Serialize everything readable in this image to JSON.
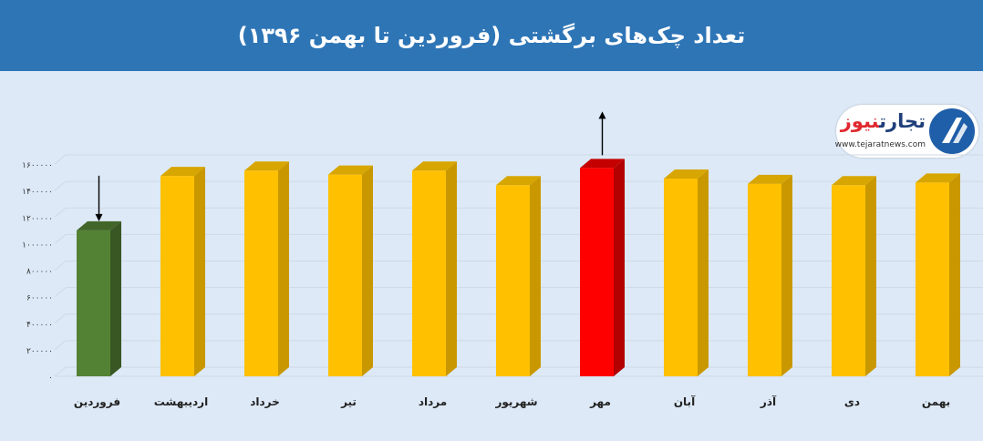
{
  "header": {
    "title": "تعداد چک‌های برگشتی (فروردین تا بهمن ۱۳۹۶)"
  },
  "logo": {
    "brand_part1": "تجارت",
    "brand_part2": "نیوز",
    "site": "www.tejaratnews.com"
  },
  "chart_data": {
    "type": "bar",
    "categories": [
      "فروردین",
      "اردیبهشت",
      "خرداد",
      "تیر",
      "مرداد",
      "شهریور",
      "مهر",
      "آبان",
      "آذر",
      "دی",
      "بهمن"
    ],
    "values": [
      1100000,
      1510000,
      1550000,
      1520000,
      1550000,
      1440000,
      1570000,
      1490000,
      1450000,
      1440000,
      1460000
    ],
    "y_ticks": [
      "0",
      "200000",
      "400000",
      "600000",
      "800000",
      "1000000",
      "1200000",
      "1400000",
      "1600000"
    ],
    "y_tick_labels_visible": [
      "۰",
      "۲۰۰۰۰۰",
      "۴۰۰۰۰۰",
      "۶۰۰۰۰۰",
      "۸۰۰۰۰۰",
      "۱۰۰۰۰۰۰",
      "۱۲۰۰۰۰۰",
      "۱۴۰۰۰۰۰",
      "۱۶۰۰۰۰۰"
    ],
    "ylim": [
      0,
      1600000
    ],
    "grid": true,
    "title": "تعداد چک‌های برگشتی (فروردین تا بهمن ۱۳۹۶)",
    "xlabel": "",
    "ylabel": "",
    "highlight": {
      "min_index": 0,
      "max_index": 6
    },
    "colors": {
      "default": "#ffc000",
      "default_side": "#c99800",
      "default_top": "#d8a600",
      "min": "#548235",
      "min_side": "#385723",
      "min_top": "#42652a",
      "max": "#ff0000",
      "max_side": "#b30000",
      "max_top": "#c40000",
      "grid": "#cfd9e6",
      "tick_text": "#333333",
      "cat_text": "#222222"
    }
  }
}
